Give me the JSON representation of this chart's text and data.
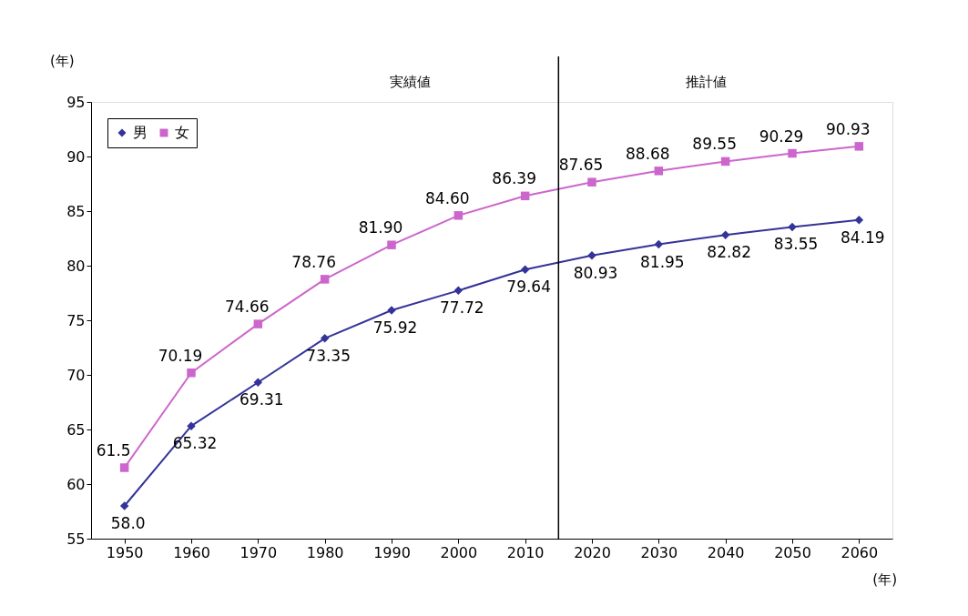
{
  "chart_data": {
    "type": "line",
    "xlabel": "(年)",
    "ylabel": "(年)",
    "x": [
      1950,
      1960,
      1970,
      1980,
      1990,
      2000,
      2010,
      2020,
      2030,
      2040,
      2050,
      2060
    ],
    "series": [
      {
        "name": "男",
        "color": "#333399",
        "marker": "diamond",
        "values": [
          58.0,
          65.32,
          69.31,
          73.35,
          75.92,
          77.72,
          79.64,
          80.93,
          81.95,
          82.82,
          83.55,
          84.19
        ],
        "value_labels": [
          "58.0",
          "65.32",
          "69.31",
          "73.35",
          "75.92",
          "77.72",
          "79.64",
          "80.93",
          "81.95",
          "82.82",
          "83.55",
          "84.19"
        ]
      },
      {
        "name": "女",
        "color": "#cc66cc",
        "marker": "square",
        "values": [
          61.5,
          70.19,
          74.66,
          78.76,
          81.9,
          84.6,
          86.39,
          87.65,
          88.68,
          89.55,
          90.29,
          90.93
        ],
        "value_labels": [
          "61.5",
          "70.19",
          "74.66",
          "78.76",
          "81.90",
          "84.60",
          "86.39",
          "87.65",
          "88.68",
          "89.55",
          "90.29",
          "90.93"
        ]
      }
    ],
    "xlim": [
      1945,
      2065
    ],
    "xticks": [
      1950,
      1960,
      1970,
      1980,
      1990,
      2000,
      2010,
      2020,
      2030,
      2040,
      2050,
      2060
    ],
    "ylim": [
      55,
      95
    ],
    "yticks": [
      55,
      60,
      65,
      70,
      75,
      80,
      85,
      90,
      95
    ],
    "grid": false,
    "legend": "top left",
    "ref_lines": [
      {
        "axis": "x",
        "value": 2015,
        "color": "#000000"
      }
    ],
    "annotations": [
      "実績値",
      "推計値"
    ]
  }
}
